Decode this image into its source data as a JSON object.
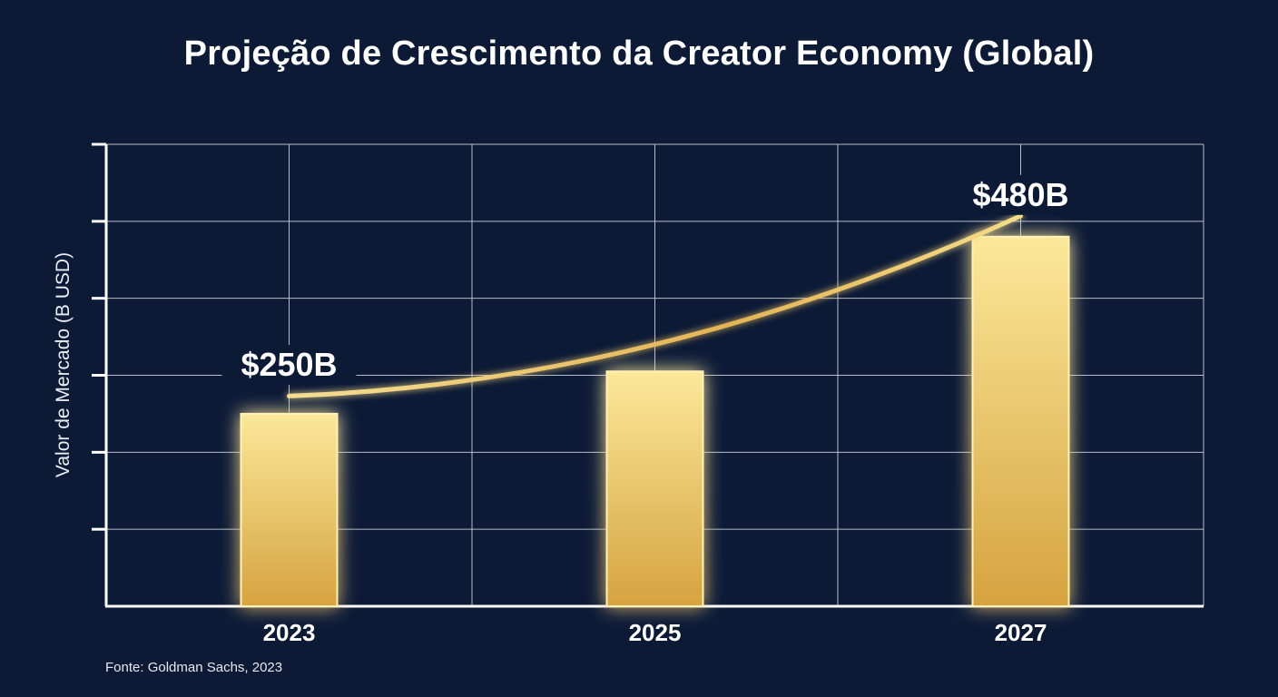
{
  "chart_data": {
    "type": "bar",
    "title": "Projeção de Crescimento da Creator Economy (Global)",
    "ylabel": "Valor de Mercado (B USD)",
    "xlabel": "",
    "categories": [
      "2023",
      "2025",
      "2027"
    ],
    "values": [
      250,
      305,
      480
    ],
    "data_labels": [
      "$250B",
      "",
      "$480B"
    ],
    "trend_line": [
      {
        "x": "2023",
        "y": 273
      },
      {
        "x": "2025",
        "y": 340
      },
      {
        "x": "2027",
        "y": 507
      }
    ],
    "ylim": [
      0,
      600
    ],
    "grid": true,
    "legend": "none",
    "colors": {
      "background": "#0c1a36",
      "bar_top": "#fbe89a",
      "bar_bottom": "#d6a33f",
      "bar_glow": "#ffd75e",
      "trend": "#f3d27a",
      "grid": "#c9cfdc",
      "axis": "#ffffff",
      "text": "#ffffff"
    },
    "source": "Fonte: Goldman Sachs, 2023"
  }
}
